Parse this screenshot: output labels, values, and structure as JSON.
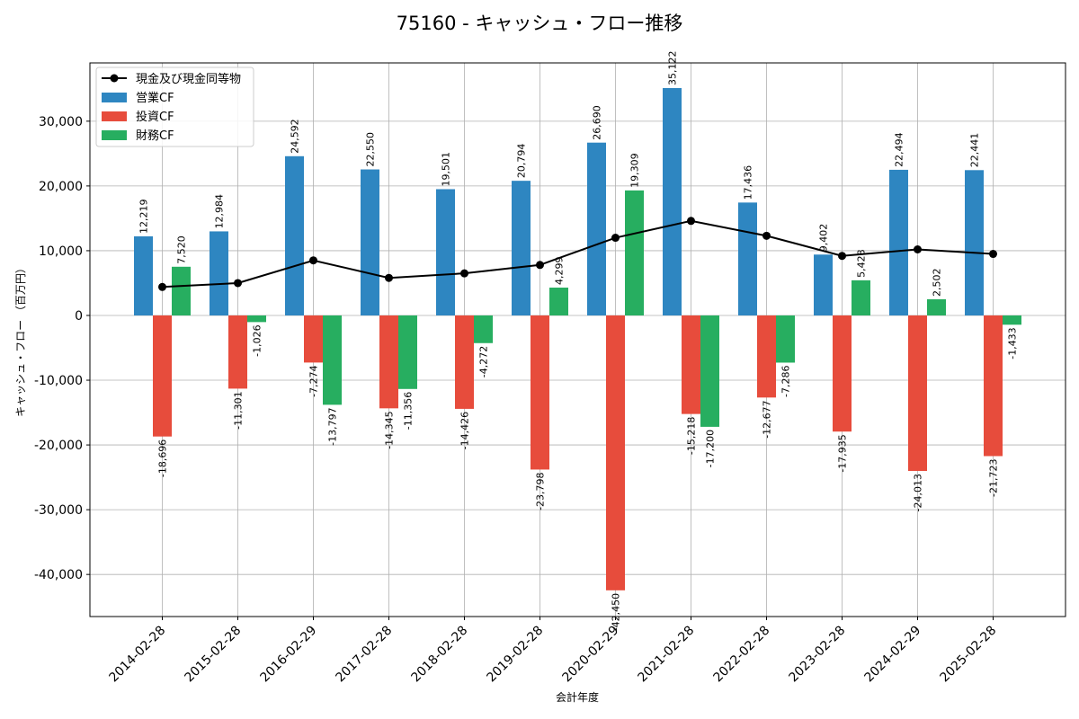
{
  "chart_data": {
    "type": "bar",
    "title": "75160 - キャッシュ・フロー推移",
    "xlabel": "会計年度",
    "ylabel": "キャッシュ・フロー （百万円）",
    "categories": [
      "2014-02-28",
      "2015-02-28",
      "2016-02-29",
      "2017-02-28",
      "2018-02-28",
      "2019-02-28",
      "2020-02-29",
      "2021-02-28",
      "2022-02-28",
      "2023-02-28",
      "2024-02-29",
      "2025-02-28"
    ],
    "ylim": [
      -46500,
      39000
    ],
    "yticks": [
      -40000,
      -30000,
      -20000,
      -10000,
      0,
      10000,
      20000,
      30000
    ],
    "ytick_labels": [
      "-40,000",
      "-30,000",
      "-20,000",
      "-10,000",
      "0",
      "10,000",
      "20,000",
      "30,000"
    ],
    "grid": true,
    "legend_position": "top-left",
    "series": [
      {
        "name": "営業CF",
        "kind": "bar",
        "color": "#2e86c1",
        "values": [
          12219,
          12984,
          24592,
          22550,
          19501,
          20794,
          26690,
          35122,
          17436,
          9402,
          22494,
          22441
        ],
        "labels": [
          "12,219",
          "12,984",
          "24,592",
          "22,550",
          "19,501",
          "20,794",
          "26,690",
          "35,122",
          "17,436",
          "9,402",
          "22,494",
          "22,441"
        ]
      },
      {
        "name": "投資CF",
        "kind": "bar",
        "color": "#e74c3c",
        "values": [
          -18696,
          -11301,
          -7274,
          -14345,
          -14426,
          -23798,
          -42450,
          -15218,
          -12677,
          -17935,
          -24013,
          -21723
        ],
        "labels": [
          "-18,696",
          "-11,301",
          "-7,274",
          "-14,345",
          "-14,426",
          "-23,798",
          "-42,450",
          "-15,218",
          "-12,677",
          "-17,935",
          "-24,013",
          "-21,723"
        ]
      },
      {
        "name": "財務CF",
        "kind": "bar",
        "color": "#27ae60",
        "values": [
          7520,
          -1026,
          -13797,
          -11356,
          -4272,
          4299,
          19309,
          -17200,
          -7286,
          5428,
          2502,
          -1433
        ],
        "labels": [
          "7,520",
          "-1,026",
          "-13,797",
          "-11,356",
          "-4,272",
          "4,299",
          "19,309",
          "-17,200",
          "-7,286",
          "5,428",
          "2,502",
          "-1,433"
        ]
      },
      {
        "name": "現金及び現金同等物",
        "kind": "line",
        "color": "#000000",
        "values": [
          4400,
          5000,
          8500,
          5800,
          6500,
          7800,
          12000,
          14600,
          12300,
          9200,
          10200,
          9500
        ]
      }
    ]
  }
}
